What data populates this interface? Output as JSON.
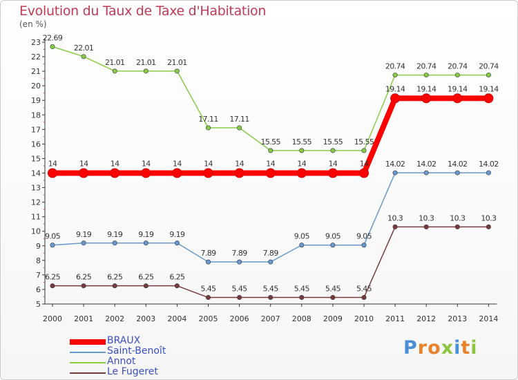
{
  "title": "Evolution du Taux de Taxe d'Habitation",
  "unit_label": "(en %)",
  "logo": {
    "text": "Proxiti",
    "letters": [
      {
        "ch": "P",
        "color": "#4a90d9"
      },
      {
        "ch": "r",
        "color": "#e9822a"
      },
      {
        "ch": "o",
        "color": "#e9822a"
      },
      {
        "ch": "x",
        "color": "#8cc63f"
      },
      {
        "ch": "i",
        "color": "#4a90d9"
      },
      {
        "ch": "t",
        "color": "#e9822a"
      },
      {
        "ch": "i",
        "color": "#8cc63f"
      }
    ]
  },
  "chart_data": {
    "type": "line",
    "title": "Evolution du Taux de Taxe d'Habitation",
    "ylabel": "(en %)",
    "xlabel": "",
    "x": [
      "2000",
      "2001",
      "2002",
      "2003",
      "2004",
      "2005",
      "2006",
      "2007",
      "2008",
      "2009",
      "2010",
      "2011",
      "2012",
      "2013",
      "2014"
    ],
    "ylim": [
      5,
      23
    ],
    "yticks": [
      "5",
      "6",
      "7",
      "8",
      "9",
      "10",
      "11",
      "12",
      "13",
      "14",
      "15",
      "16",
      "17",
      "18",
      "19",
      "20",
      "21",
      "22",
      "23"
    ],
    "grid": false,
    "legend_position": "bottom-left",
    "series": [
      {
        "name": "BRAUX",
        "color": "#ff0000",
        "emphasis": true,
        "values": [
          14,
          14,
          14,
          14,
          14,
          14,
          14,
          14,
          14,
          14,
          14,
          19.14,
          19.14,
          19.14,
          19.14
        ],
        "labels": [
          "14",
          "14",
          "14",
          "14",
          "14",
          "14",
          "14",
          "14",
          "14",
          "14",
          "14",
          "19.14",
          "19.14",
          "19.14",
          "19.14"
        ]
      },
      {
        "name": "Saint-Benoît",
        "color": "#6699cc",
        "values": [
          9.05,
          9.19,
          9.19,
          9.19,
          9.19,
          7.89,
          7.89,
          7.89,
          9.05,
          9.05,
          9.05,
          14.02,
          14.02,
          14.02,
          14.02
        ],
        "labels": [
          "9.05",
          "9.19",
          "9.19",
          "9.19",
          "9.19",
          "7.89",
          "7.89",
          "7.89",
          "9.05",
          "9.05",
          "9.05",
          "14.02",
          "14.02",
          "14.02",
          "14.02"
        ]
      },
      {
        "name": "Annot",
        "color": "#88cc44",
        "values": [
          22.69,
          22.01,
          21.01,
          21.01,
          21.01,
          17.11,
          17.11,
          15.55,
          15.55,
          15.55,
          15.55,
          20.74,
          20.74,
          20.74,
          20.74
        ],
        "labels": [
          "22.69",
          "22.01",
          "21.01",
          "21.01",
          "21.01",
          "17.11",
          "17.11",
          "15.55",
          "15.55",
          "15.55",
          "15.55",
          "20.74",
          "20.74",
          "20.74",
          "20.74"
        ]
      },
      {
        "name": "Le Fugeret",
        "color": "#7a3a3a",
        "values": [
          6.25,
          6.25,
          6.25,
          6.25,
          6.25,
          5.45,
          5.45,
          5.45,
          5.45,
          5.45,
          5.45,
          10.3,
          10.3,
          10.3,
          10.3
        ],
        "labels": [
          "6.25",
          "6.25",
          "6.25",
          "6.25",
          "6.25",
          "5.45",
          "5.45",
          "5.45",
          "5.45",
          "5.45",
          "5.45",
          "10.3",
          "10.3",
          "10.3",
          "10.3"
        ]
      }
    ]
  }
}
